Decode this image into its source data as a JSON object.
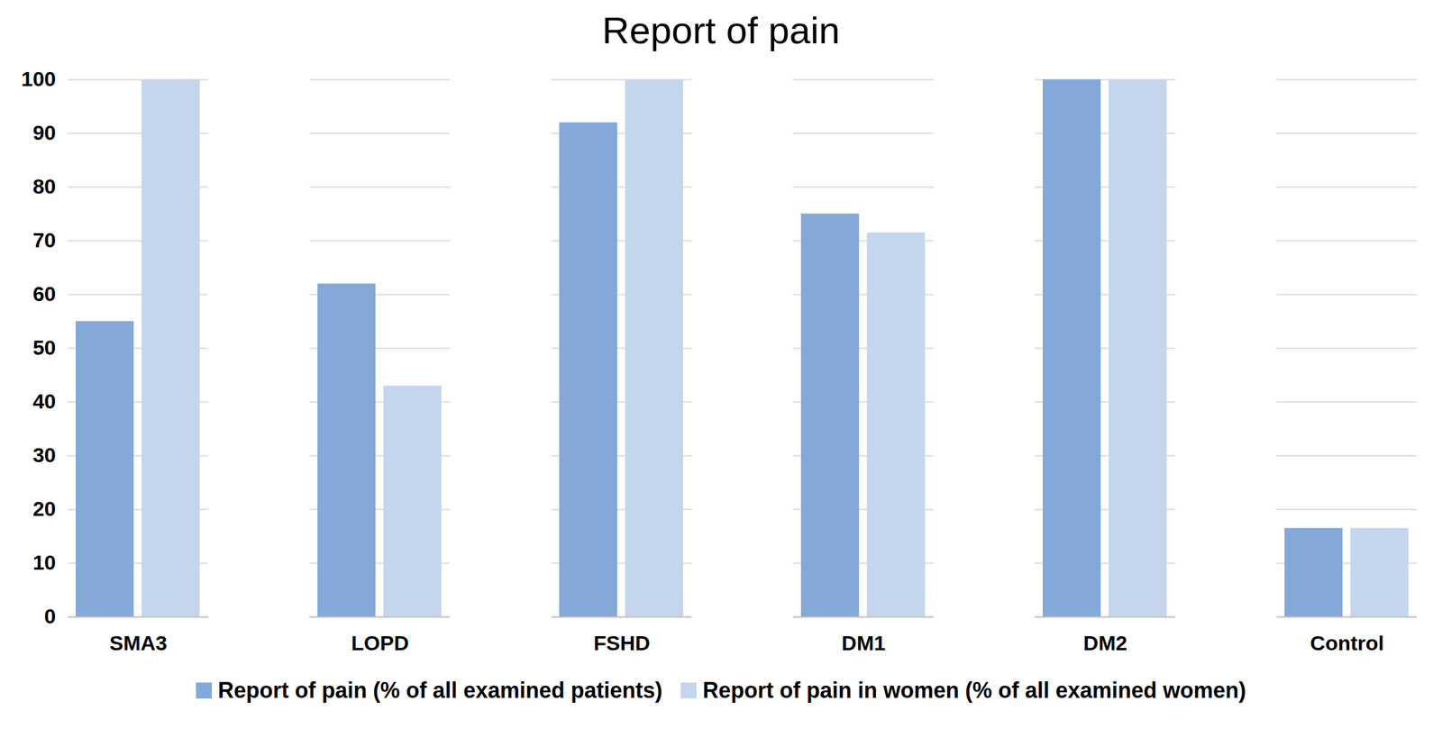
{
  "chart_data": {
    "type": "bar",
    "title": "Report of pain",
    "categories": [
      "SMA3",
      "LOPD",
      "FSHD",
      "DM1",
      "DM2",
      "Control"
    ],
    "series": [
      {
        "name": "Report of pain (% of all examined patients)",
        "color": "#84a9d8",
        "values": [
          55,
          62,
          92,
          75,
          100,
          16.5
        ]
      },
      {
        "name": "Report of pain in women (% of all examined women)",
        "color": "#c5d5eb",
        "values": [
          100,
          43,
          100,
          71.5,
          100,
          16.5
        ]
      }
    ],
    "ylim": [
      0,
      100
    ],
    "yticks": [
      0,
      10,
      20,
      30,
      40,
      50,
      60,
      70,
      80,
      90,
      100
    ],
    "grid": true,
    "legend": "bottom"
  }
}
